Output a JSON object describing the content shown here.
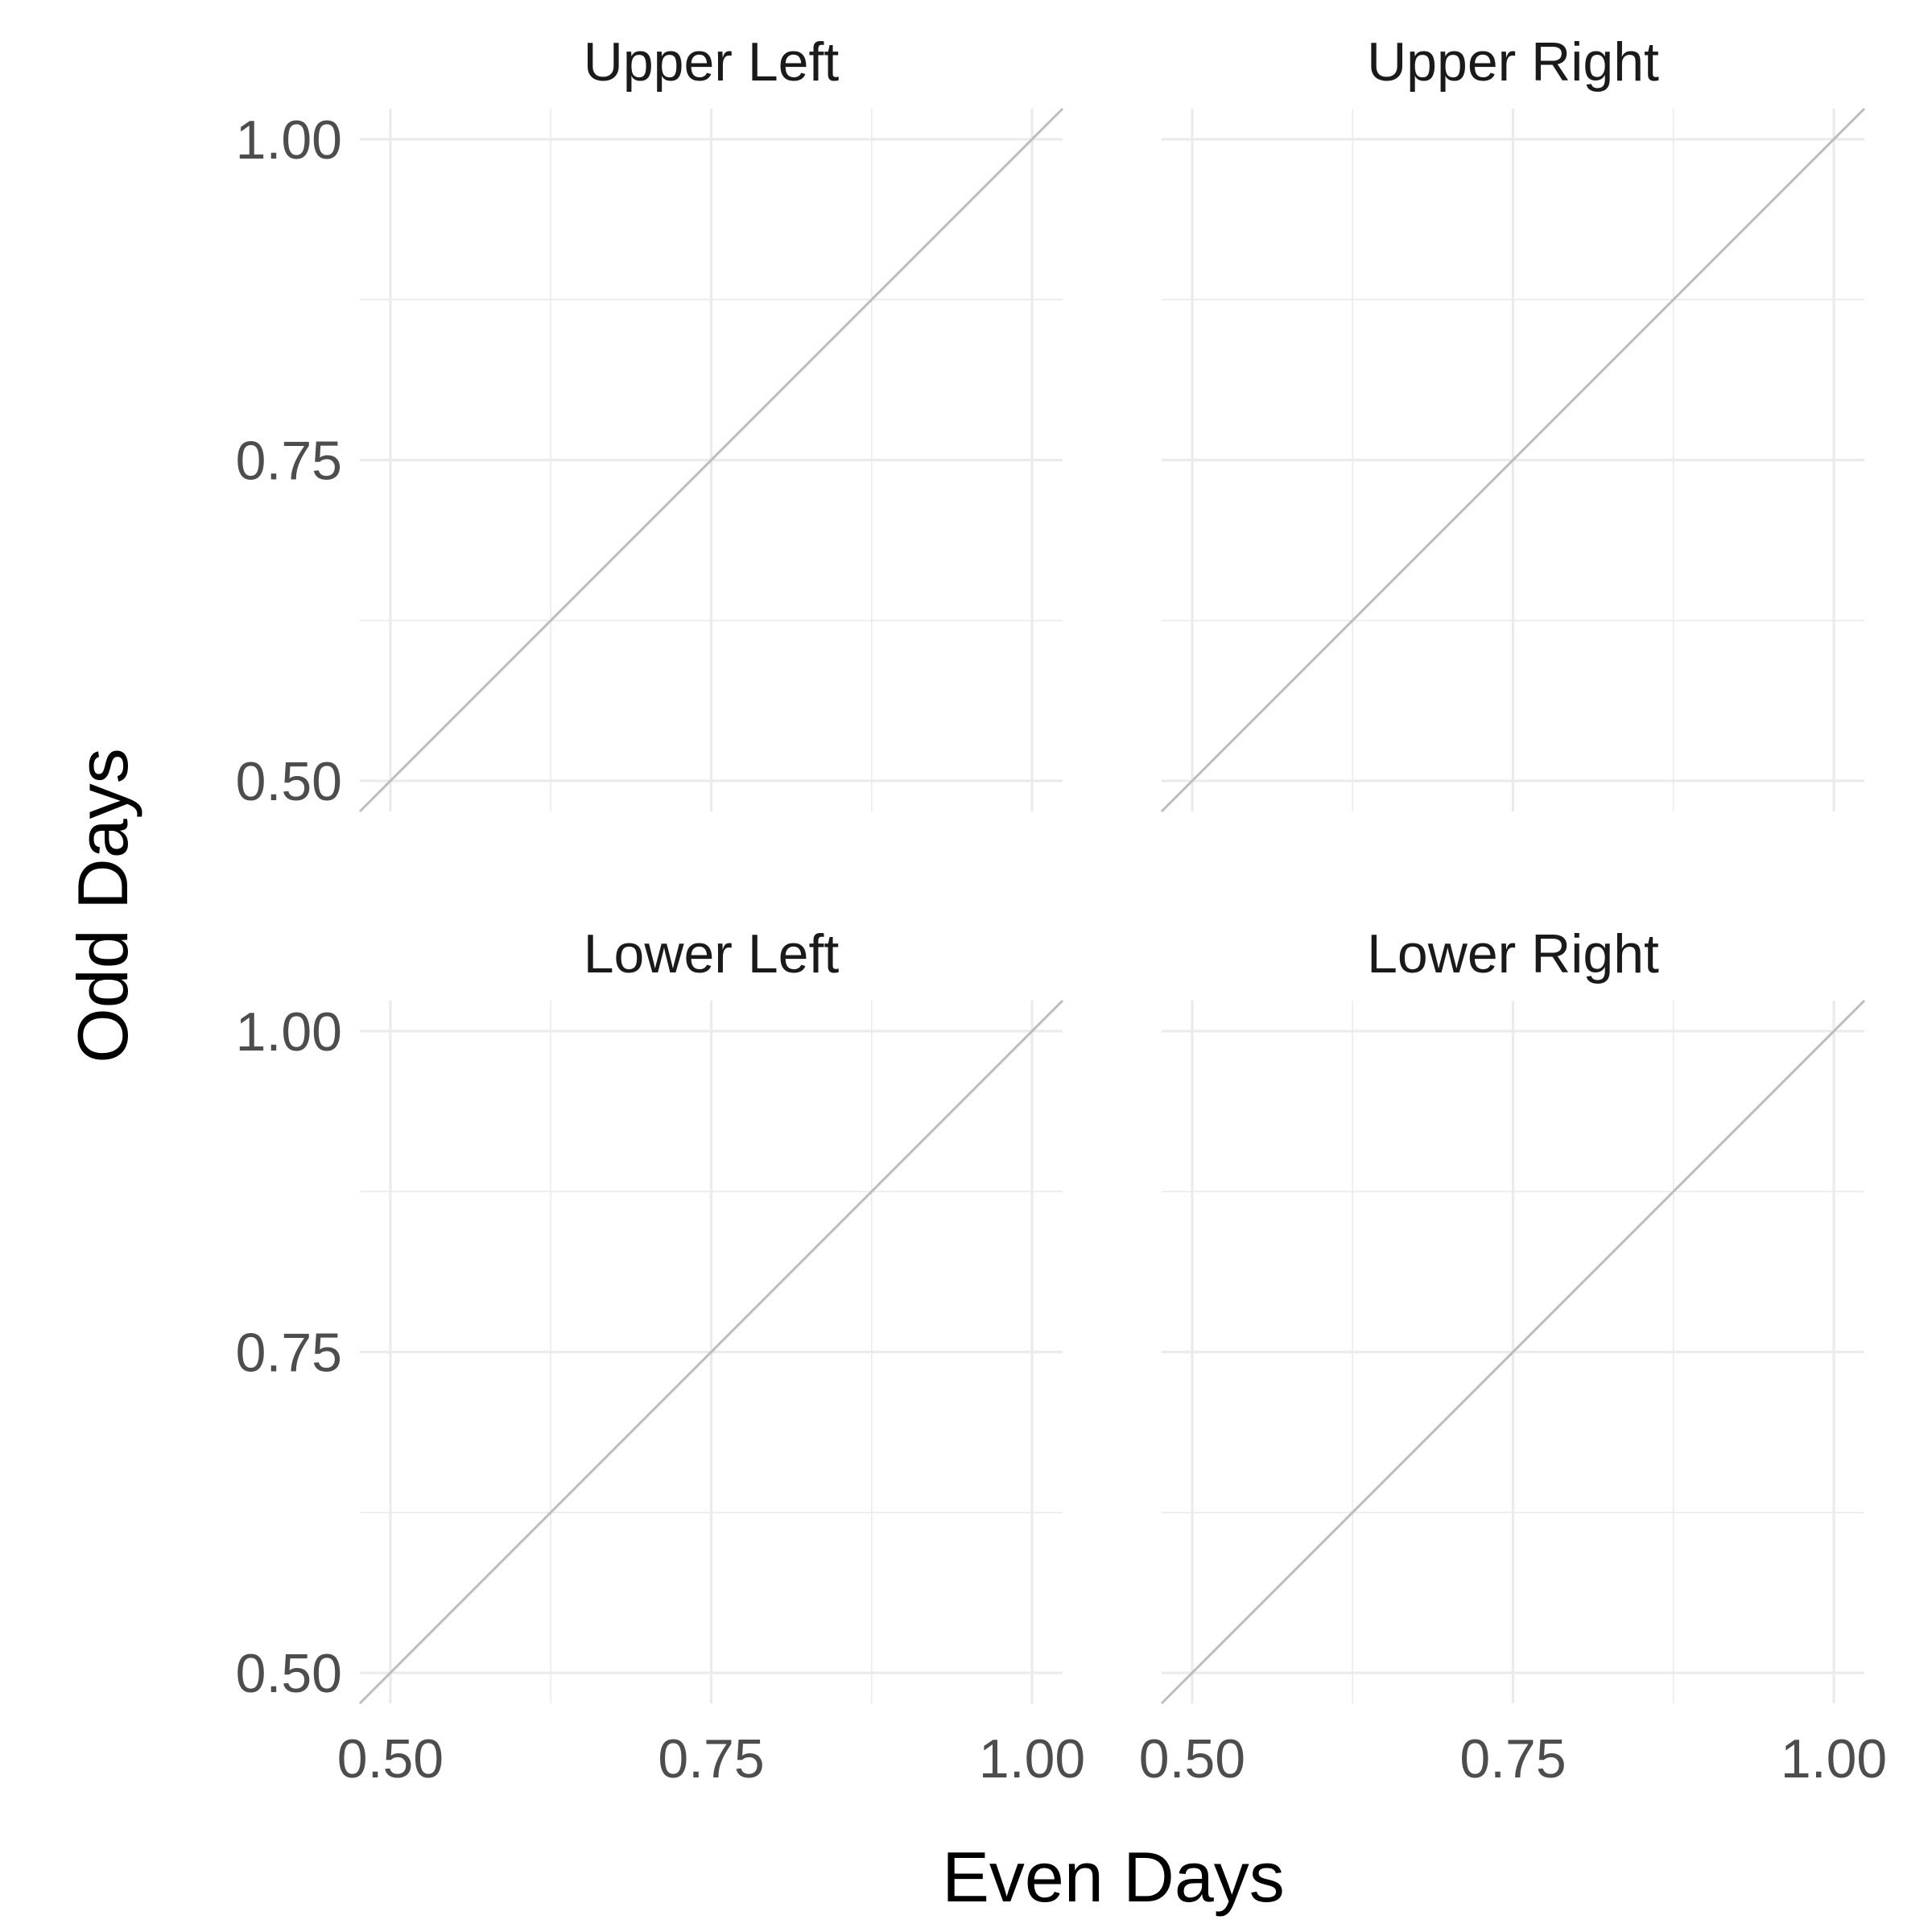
{
  "chart_data": {
    "type": "line",
    "xlabel": "Even Days",
    "ylabel": "Odd Days",
    "xlim": [
      0.4762,
      1.0238
    ],
    "ylim": [
      0.4762,
      1.0238
    ],
    "x_ticks": [
      0.5,
      0.75,
      1.0
    ],
    "y_ticks": [
      0.5,
      0.75,
      1.0
    ],
    "x_tick_labels": [
      "0.50",
      "0.75",
      "1.00"
    ],
    "y_tick_labels": [
      "0.50",
      "0.75",
      "1.00"
    ],
    "minor_ticks": [
      0.625,
      0.875
    ],
    "grid": true,
    "reference_line": {
      "slope": 1,
      "intercept": 0,
      "color": "#bdbdbd"
    },
    "facets": [
      {
        "title": "Upper Left"
      },
      {
        "title": "Upper Right"
      },
      {
        "title": "Lower Left"
      },
      {
        "title": "Lower Right"
      }
    ]
  }
}
